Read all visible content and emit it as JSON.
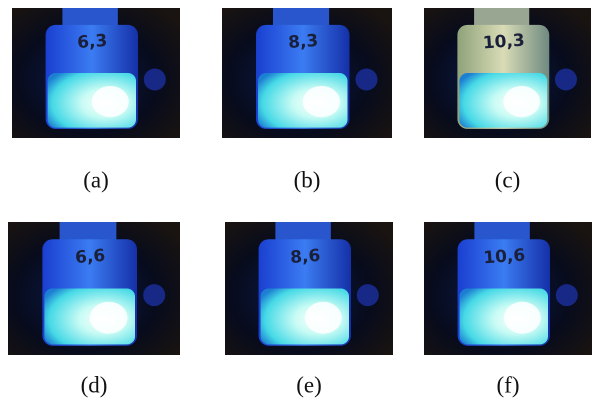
{
  "panels": [
    {
      "label": "(a)",
      "vial_text": "6,3"
    },
    {
      "label": "(b)",
      "vial_text": "8,3"
    },
    {
      "label": "(c)",
      "vial_text": "10,3"
    },
    {
      "label": "(d)",
      "vial_text": "6,6"
    },
    {
      "label": "(e)",
      "vial_text": "8,6"
    },
    {
      "label": "(f)",
      "vial_text": "10,6"
    }
  ]
}
